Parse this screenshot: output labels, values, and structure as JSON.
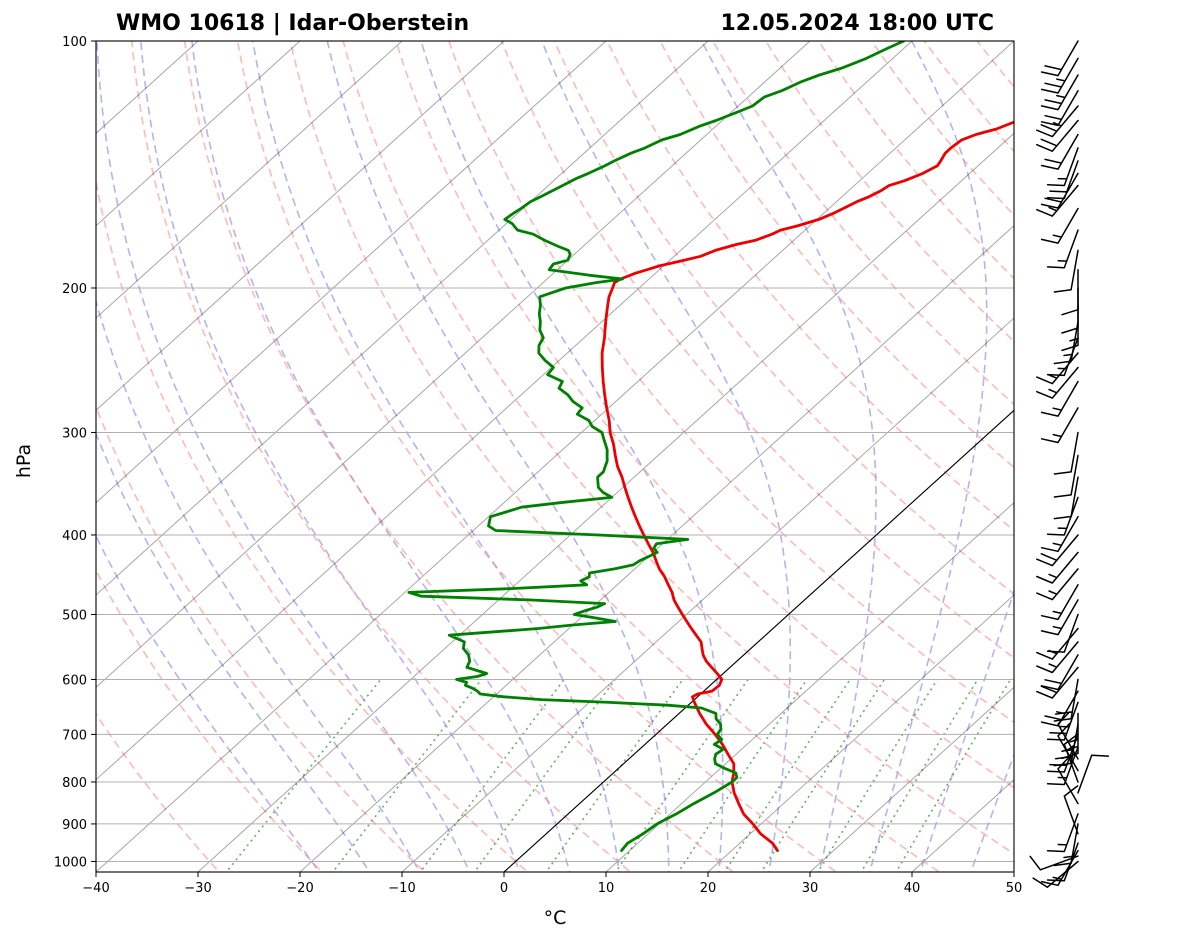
{
  "chart_data": {
    "type": "line",
    "title_left": "WMO 10618 | Idar-Oberstein",
    "title_right": "12.05.2024 18:00 UTC",
    "xlabel": "°C",
    "ylabel": "hPa",
    "xlim": [
      -40,
      50
    ],
    "ylim": [
      1030,
      100
    ],
    "x_ticks": [
      -40,
      -30,
      -20,
      -10,
      0,
      10,
      20,
      30,
      40,
      50
    ],
    "x_tick_labels": [
      "−40",
      "−30",
      "−20",
      "−10",
      "0",
      "10",
      "20",
      "30",
      "40",
      "50"
    ],
    "y_ticks": [
      100,
      200,
      300,
      400,
      500,
      600,
      700,
      800,
      900,
      1000
    ],
    "y_tick_labels": [
      "100",
      "200",
      "300",
      "400",
      "500",
      "600",
      "700",
      "800",
      "900",
      "1000"
    ],
    "skew": 1,
    "colors": {
      "temperature": "#ee0000",
      "dewpoint": "#008000",
      "isotherm": "#000000",
      "dry_adiabat": "#ff8080",
      "moist_adiabat": "#8080f0",
      "mixing_ratio": "#3aa03a",
      "grid": "#b0b0b0",
      "zero_isotherm": "#000000"
    },
    "series": [
      {
        "name": "Temperature",
        "pressure": [
          970,
          950,
          925,
          900,
          875,
          850,
          825,
          800,
          780,
          760,
          740,
          720,
          700,
          680,
          660,
          640,
          630,
          625,
          620,
          610,
          600,
          590,
          580,
          570,
          560,
          550,
          540,
          530,
          520,
          510,
          500,
          490,
          480,
          470,
          460,
          450,
          440,
          430,
          420,
          410,
          400,
          390,
          380,
          370,
          360,
          350,
          340,
          330,
          320,
          310,
          300,
          290,
          280,
          270,
          260,
          250,
          240,
          230,
          225,
          220,
          215,
          210,
          205,
          200,
          197,
          195,
          192,
          190,
          188,
          185,
          183,
          180,
          177,
          175,
          172,
          170,
          168,
          165,
          162,
          160,
          157,
          155,
          152,
          150,
          148,
          145,
          142,
          140,
          137,
          135,
          132,
          130,
          128,
          125,
          122,
          120,
          117,
          115,
          112,
          110,
          108,
          105,
          103,
          100
        ],
        "values": [
          24.5,
          23.2,
          21.0,
          19.2,
          17.2,
          15.6,
          14.0,
          12.6,
          11.8,
          10.8,
          9.2,
          7.6,
          5.8,
          3.8,
          2.0,
          0.3,
          -0.5,
          -0.3,
          0.8,
          0.9,
          0.5,
          -0.6,
          -1.8,
          -3.0,
          -4.0,
          -4.8,
          -5.6,
          -6.8,
          -8.0,
          -9.2,
          -10.4,
          -11.6,
          -12.8,
          -13.8,
          -15.0,
          -16.2,
          -17.6,
          -18.8,
          -20.0,
          -21.4,
          -22.8,
          -24.2,
          -25.6,
          -27.0,
          -28.4,
          -29.8,
          -31.2,
          -32.8,
          -34.2,
          -35.6,
          -37.2,
          -38.6,
          -40.2,
          -41.8,
          -43.4,
          -45.0,
          -46.6,
          -48.0,
          -48.8,
          -49.6,
          -50.4,
          -51.2,
          -52.0,
          -52.6,
          -53.0,
          -52.8,
          -52.0,
          -51.2,
          -50.4,
          -48.6,
          -47.4,
          -46.6,
          -45.2,
          -43.8,
          -42.8,
          -42.4,
          -41.2,
          -39.8,
          -39.0,
          -38.6,
          -38.0,
          -37.4,
          -36.8,
          -36.6,
          -35.6,
          -34.6,
          -34.0,
          -34.2,
          -34.6,
          -34.6,
          -34.4,
          -33.6,
          -32.2,
          -31.0,
          -30.0,
          -29.4,
          -29.2,
          -28.6,
          -28.0,
          -27.2,
          -26.6,
          -25.8,
          -25.0,
          -25.0
        ]
      },
      {
        "name": "Dewpoint",
        "pressure": [
          970,
          950,
          925,
          900,
          875,
          850,
          825,
          800,
          790,
          780,
          770,
          760,
          750,
          740,
          730,
          720,
          710,
          700,
          690,
          680,
          670,
          660,
          650,
          645,
          640,
          635,
          630,
          625,
          620,
          615,
          610,
          605,
          600,
          595,
          590,
          580,
          570,
          560,
          550,
          540,
          530,
          520,
          515,
          510,
          505,
          500,
          495,
          490,
          485,
          480,
          475,
          470,
          465,
          460,
          455,
          450,
          445,
          440,
          435,
          430,
          425,
          420,
          415,
          410,
          405,
          400,
          395,
          390,
          385,
          380,
          375,
          370,
          365,
          360,
          355,
          350,
          345,
          340,
          335,
          330,
          325,
          320,
          315,
          310,
          305,
          300,
          295,
          290,
          285,
          280,
          275,
          270,
          265,
          260,
          255,
          250,
          245,
          240,
          235,
          230,
          225,
          220,
          215,
          210,
          205,
          200,
          197,
          195,
          193,
          190,
          187,
          185,
          182,
          180,
          178,
          175,
          172,
          170,
          167,
          165,
          162,
          160,
          157,
          155,
          152,
          150,
          147,
          145,
          142,
          140,
          137,
          135,
          132,
          130,
          127,
          125,
          122,
          120,
          117,
          115,
          112,
          110,
          108,
          105,
          102,
          100
        ],
        "values": [
          9.2,
          9.0,
          9.5,
          9.8,
          10.6,
          11.2,
          12.0,
          12.6,
          12.6,
          12.0,
          10.4,
          9.0,
          8.4,
          8.0,
          8.2,
          6.8,
          7.0,
          6.0,
          5.8,
          5.2,
          4.2,
          3.6,
          1.6,
          -2.0,
          -8.0,
          -15.0,
          -19.0,
          -21.6,
          -22.2,
          -23.0,
          -24.0,
          -24.2,
          -25.5,
          -23.8,
          -23.2,
          -25.8,
          -26.2,
          -27.0,
          -28.2,
          -28.8,
          -31.0,
          -23.0,
          -20.0,
          -16.2,
          -18.5,
          -21.0,
          -20.4,
          -19.6,
          -19.2,
          -27.0,
          -38.0,
          -39.6,
          -30.0,
          -23.0,
          -24.0,
          -23.6,
          -24.0,
          -22.0,
          -20.6,
          -20.4,
          -20.0,
          -19.6,
          -20.4,
          -20.6,
          -18.0,
          -27.2,
          -37.8,
          -39.0,
          -39.4,
          -39.8,
          -38.8,
          -37.8,
          -34.2,
          -30.0,
          -31.4,
          -32.4,
          -33.0,
          -33.6,
          -33.6,
          -34.0,
          -34.4,
          -35.0,
          -35.6,
          -36.4,
          -37.2,
          -38.0,
          -39.6,
          -40.6,
          -42.4,
          -42.6,
          -44.2,
          -45.4,
          -47.0,
          -47.4,
          -49.6,
          -49.8,
          -51.4,
          -52.8,
          -53.6,
          -54.0,
          -55.2,
          -56.0,
          -57.0,
          -57.8,
          -58.8,
          -57.2,
          -54.8,
          -52.6,
          -56.2,
          -60.8,
          -61.0,
          -60.0,
          -60.4,
          -61.0,
          -62.4,
          -64.4,
          -66.2,
          -68.2,
          -69.4,
          -70.6,
          -70.4,
          -70.2,
          -70.0,
          -69.6,
          -69.0,
          -68.6,
          -68.0,
          -67.4,
          -66.6,
          -66.2,
          -65.4,
          -64.6,
          -63.8,
          -62.6,
          -61.6,
          -60.6,
          -59.4,
          -58.6,
          -58.4,
          -57.4,
          -56.4,
          -55.4,
          -54.0,
          -52.6,
          -51.6,
          -50.8
        ]
      }
    ],
    "wind_barbs": {
      "pressure": [
        1000,
        985,
        970,
        950,
        925,
        900,
        875,
        850,
        825,
        800,
        775,
        750,
        725,
        700,
        680,
        660,
        640,
        620,
        600,
        580,
        560,
        540,
        520,
        500,
        480,
        460,
        440,
        420,
        400,
        380,
        360,
        340,
        320,
        300,
        280,
        260,
        250,
        240,
        230,
        220,
        210,
        200,
        190,
        180,
        170,
        160,
        150,
        145,
        140,
        135,
        130,
        125,
        120,
        115,
        110,
        105,
        100
      ],
      "speed_kt": [
        10,
        10,
        15,
        10,
        10,
        15,
        15,
        10,
        10,
        15,
        10,
        10,
        15,
        20,
        25,
        25,
        25,
        25,
        20,
        20,
        20,
        15,
        15,
        10,
        15,
        15,
        15,
        15,
        20,
        15,
        15,
        10,
        10,
        10,
        15,
        15,
        15,
        15,
        15,
        15,
        15,
        10,
        10,
        10,
        15,
        15,
        15,
        20,
        20,
        15,
        20,
        20,
        25,
        20,
        25,
        25,
        20
      ],
      "direction_deg": [
        230,
        250,
        210,
        200,
        340,
        190,
        200,
        330,
        20,
        340,
        330,
        330,
        200,
        200,
        190,
        180,
        200,
        210,
        190,
        220,
        210,
        220,
        220,
        200,
        210,
        210,
        220,
        220,
        220,
        210,
        200,
        190,
        190,
        190,
        210,
        210,
        220,
        220,
        200,
        190,
        180,
        180,
        180,
        190,
        200,
        210,
        220,
        210,
        200,
        200,
        210,
        220,
        220,
        210,
        210,
        210,
        210
      ]
    }
  }
}
